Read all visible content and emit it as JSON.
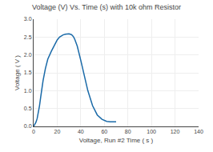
{
  "chart_data": {
    "type": "line",
    "title": "Voltage (V) Vs. Time (s) with 10k ohm Resistor",
    "xlabel": "Voltage, Run #2 Time ( s )",
    "ylabel": "Voltage ( V )",
    "x": [
      0,
      1,
      2,
      3,
      4,
      5,
      6,
      7,
      8,
      10,
      12,
      15,
      18,
      20,
      22,
      25,
      27,
      29,
      30,
      31,
      32,
      33,
      34,
      35,
      37,
      40,
      43,
      46,
      50,
      54,
      58,
      62,
      65,
      68,
      70
    ],
    "values": [
      0,
      0.05,
      0.12,
      0.22,
      0.38,
      0.58,
      0.82,
      1.05,
      1.28,
      1.62,
      1.88,
      2.1,
      2.3,
      2.42,
      2.5,
      2.56,
      2.58,
      2.59,
      2.59,
      2.58,
      2.57,
      2.54,
      2.5,
      2.43,
      2.25,
      1.85,
      1.42,
      1.0,
      0.58,
      0.32,
      0.2,
      0.14,
      0.13,
      0.13,
      0.13
    ],
    "color": "#1a6aa8",
    "xlim": [
      0,
      140
    ],
    "ylim": [
      0,
      3
    ],
    "xticks": [
      0,
      20,
      40,
      60,
      80,
      100,
      120,
      140
    ],
    "yticks": [
      {
        "value": 0,
        "label": "0.0"
      },
      0.5,
      {
        "value": 1.0,
        "label": "1.0"
      },
      1.5,
      {
        "value": 2.0,
        "label": "2.0"
      },
      2.5,
      {
        "value": 3.0,
        "label": "3.0"
      }
    ],
    "grid": true
  }
}
